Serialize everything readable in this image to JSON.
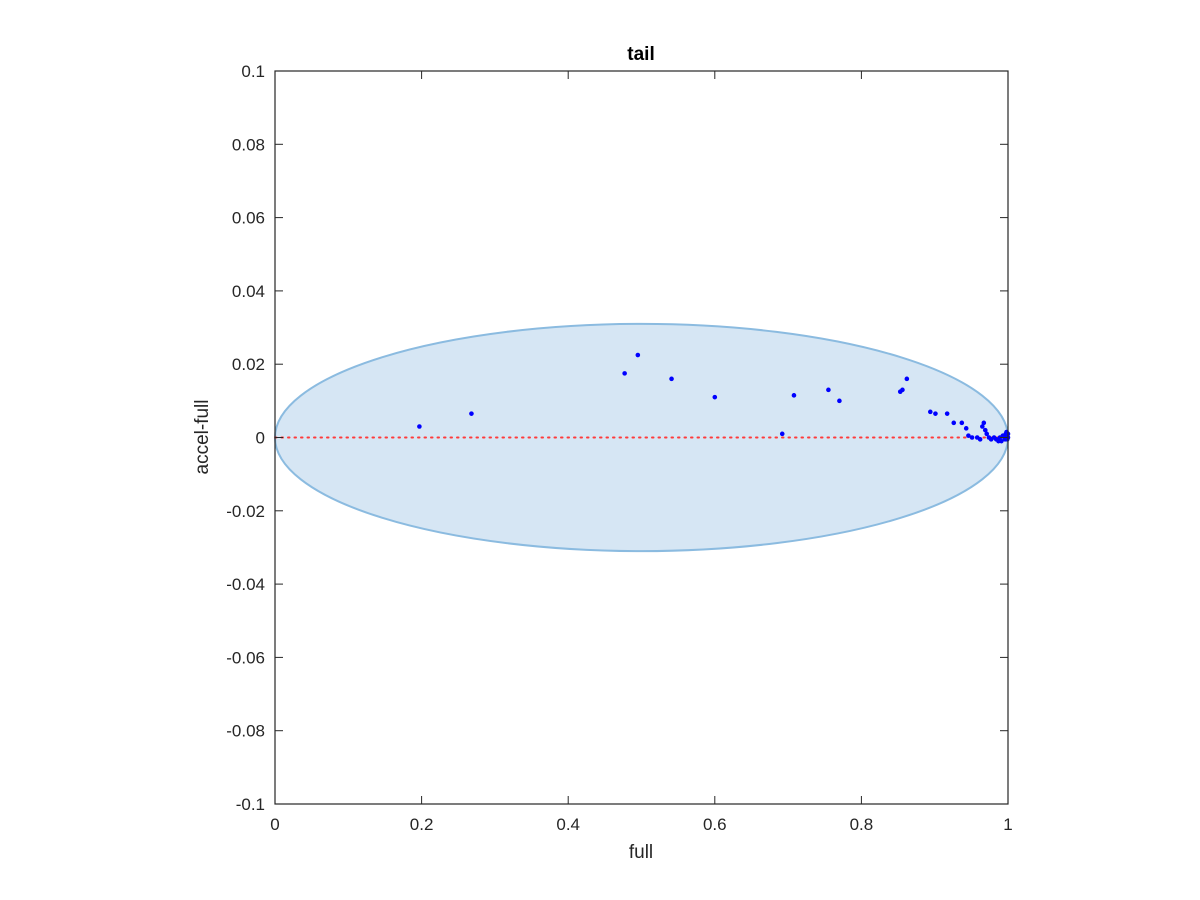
{
  "chart_data": {
    "type": "scatter",
    "title": "tail",
    "xlabel": "full",
    "ylabel": "accel-full",
    "xlim": [
      0,
      1
    ],
    "ylim": [
      -0.1,
      0.1
    ],
    "x_ticks": [
      "0",
      "0.2",
      "0.4",
      "0.6",
      "0.8",
      "1"
    ],
    "y_ticks": [
      "-0.1",
      "-0.08",
      "-0.06",
      "-0.04",
      "-0.02",
      "0",
      "0.02",
      "0.04",
      "0.06",
      "0.08",
      "0.1"
    ],
    "grid": false,
    "region": {
      "shape": "ellipse",
      "center": [
        0.5,
        0.0
      ],
      "x_radius": 0.5,
      "y_radius": 0.031,
      "fill": "#d6e6f4",
      "stroke": "#8bbbe0"
    },
    "reference_line": {
      "y": 0,
      "color": "#ff3b3b",
      "style": "dotted"
    },
    "marker_color": "#0000ff",
    "points": {
      "x": [
        0.197,
        0.268,
        0.477,
        0.495,
        0.541,
        0.6,
        0.692,
        0.708,
        0.755,
        0.77,
        0.853,
        0.856,
        0.862,
        0.894,
        0.901,
        0.917,
        0.926,
        0.937,
        0.943,
        0.946,
        0.951,
        0.958,
        0.962,
        0.965,
        0.967,
        0.969,
        0.971,
        0.974,
        0.977,
        0.981,
        0.984,
        0.987,
        0.989,
        0.991,
        0.993,
        0.995,
        0.996,
        0.997,
        0.998,
        0.999,
        1.0,
        1.0,
        0.999,
        0.998
      ],
      "y": [
        0.003,
        0.0065,
        0.0175,
        0.0225,
        0.016,
        0.011,
        0.001,
        0.0115,
        0.013,
        0.01,
        0.0125,
        0.013,
        0.016,
        0.007,
        0.0065,
        0.0065,
        0.004,
        0.004,
        0.0025,
        0.0005,
        0.0,
        0.0,
        -0.0005,
        0.003,
        0.004,
        0.002,
        0.001,
        0.0,
        -0.0005,
        0.0,
        -0.0005,
        -0.001,
        0.0,
        -0.001,
        0.0005,
        0.0,
        -0.0005,
        0.001,
        0.0015,
        0.0005,
        0.0,
        0.001,
        -0.0005,
        0.0
      ]
    }
  }
}
